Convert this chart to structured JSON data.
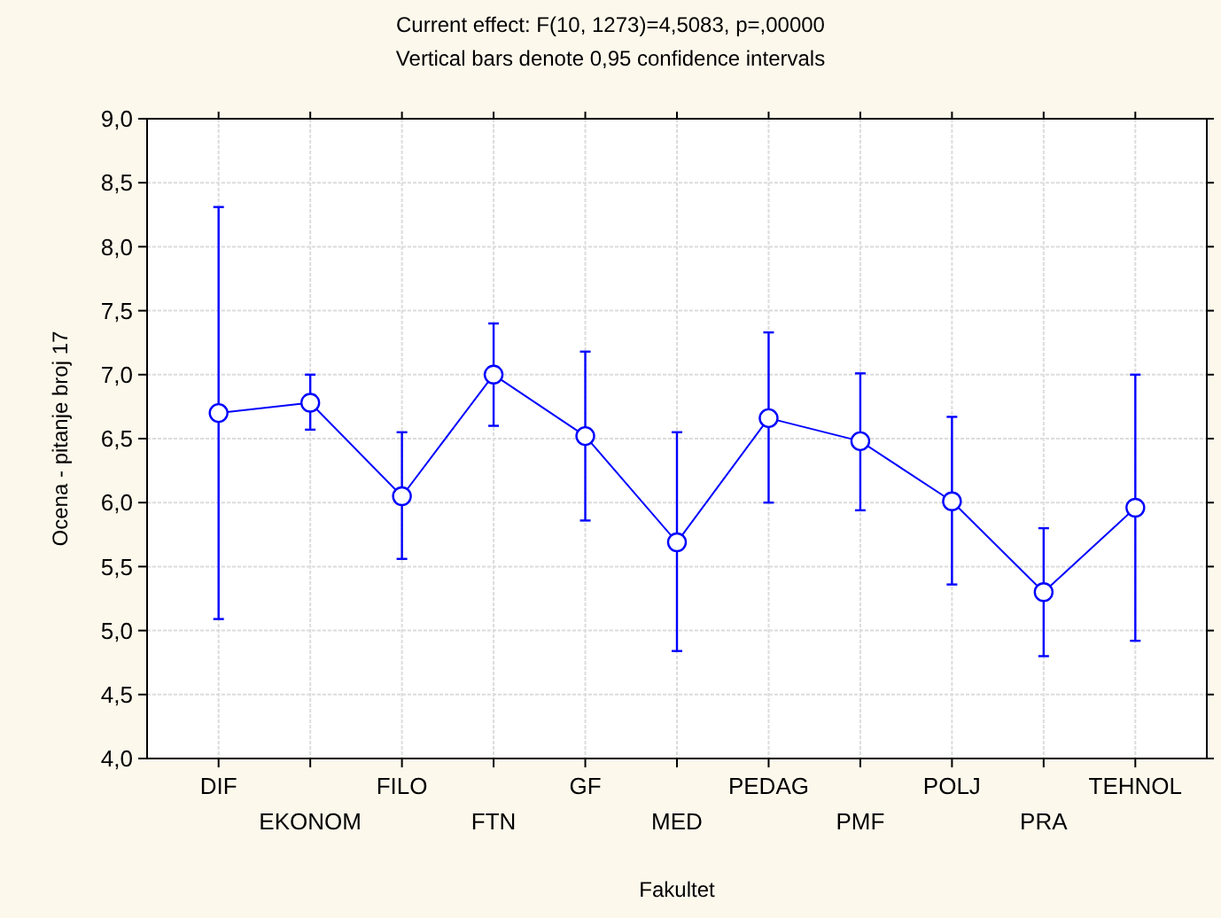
{
  "chart_data": {
    "type": "line",
    "title": "Current effect: F(10, 1273)=4,5083, p=,00000",
    "subtitle": "Vertical bars denote 0,95 confidence intervals",
    "xlabel": "Fakultet",
    "ylabel": "Ocena - pitanje broj 17",
    "categories": [
      "DIF",
      "EKONOM",
      "FILO",
      "FTN",
      "GF",
      "MED",
      "PEDAG",
      "PMF",
      "POLJ",
      "PRA",
      "TEHNOL"
    ],
    "series": [
      {
        "color": "#0000ff",
        "values": [
          6.7,
          6.78,
          6.05,
          7.0,
          6.52,
          5.69,
          6.66,
          6.48,
          6.01,
          5.3,
          5.96
        ],
        "errors": [
          [
            5.09,
            8.31
          ],
          [
            6.57,
            7.0
          ],
          [
            5.56,
            6.55
          ],
          [
            6.6,
            7.4
          ],
          [
            5.86,
            7.18
          ],
          [
            4.84,
            6.55
          ],
          [
            6.0,
            7.33
          ],
          [
            5.94,
            7.01
          ],
          [
            5.36,
            6.67
          ],
          [
            4.8,
            5.8
          ],
          [
            4.92,
            7.0
          ]
        ]
      }
    ],
    "ylim": [
      4,
      9
    ],
    "yticks": [
      {
        "value": 4,
        "label": "4,0"
      },
      {
        "value": 4.5,
        "label": "4,5"
      },
      {
        "value": 5,
        "label": "5,0"
      },
      {
        "value": 5.5,
        "label": "5,5"
      },
      {
        "value": 6,
        "label": "6,0"
      },
      {
        "value": 6.5,
        "label": "6,5"
      },
      {
        "value": 7,
        "label": "7,0"
      },
      {
        "value": 7.5,
        "label": "7,5"
      },
      {
        "value": 8,
        "label": "8,0"
      },
      {
        "value": 8.5,
        "label": "8,5"
      },
      {
        "value": 9,
        "label": "9,0"
      }
    ],
    "grid": true,
    "marker": "circle",
    "line_style": "solid"
  }
}
